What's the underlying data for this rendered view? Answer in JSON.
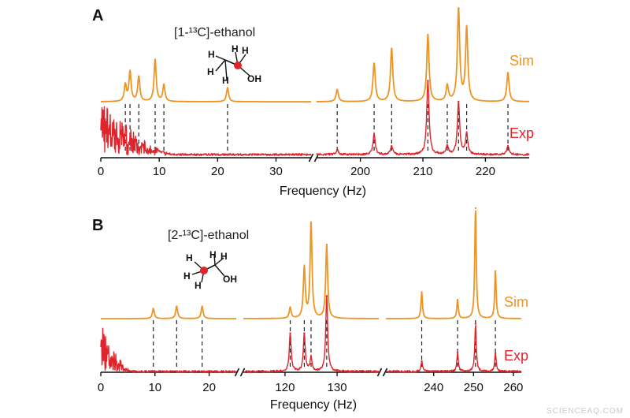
{
  "colors": {
    "sim": "#ee9422",
    "exp": "#e0242b",
    "axis": "#111111",
    "atom_highlight": "#e0242b"
  },
  "watermark": "SCIENCEAQ.COM",
  "chart_data": [
    {
      "type": "line",
      "panel": "A",
      "title": "[1-¹³C]-ethanol",
      "xlabel": "Frequency (Hz)",
      "ylabel": "",
      "x_segments": [
        {
          "xlim": [
            0,
            36
          ],
          "ticks": [
            0,
            10,
            20,
            30
          ]
        },
        {
          "xlim": [
            193,
            227
          ],
          "ticks": [
            200,
            210,
            220
          ]
        }
      ],
      "series": [
        {
          "name": "Sim",
          "peaks": [
            {
              "x": 4.2,
              "h": 0.18
            },
            {
              "x": 5.0,
              "h": 0.32
            },
            {
              "x": 6.5,
              "h": 0.27
            },
            {
              "x": 9.3,
              "h": 0.45
            },
            {
              "x": 10.8,
              "h": 0.18
            },
            {
              "x": 21.7,
              "h": 0.15
            },
            {
              "x": 196.3,
              "h": 0.13
            },
            {
              "x": 202.2,
              "h": 0.41
            },
            {
              "x": 205.0,
              "h": 0.57
            },
            {
              "x": 210.8,
              "h": 0.72
            },
            {
              "x": 213.9,
              "h": 0.17
            },
            {
              "x": 215.7,
              "h": 1.0
            },
            {
              "x": 217.0,
              "h": 0.79
            },
            {
              "x": 223.6,
              "h": 0.31
            }
          ]
        },
        {
          "name": "Exp",
          "peaks": [
            {
              "x": 196.3,
              "h": 0.05
            },
            {
              "x": 202.2,
              "h": 0.21
            },
            {
              "x": 205.0,
              "h": 0.09
            },
            {
              "x": 210.8,
              "h": 0.78
            },
            {
              "x": 213.9,
              "h": 0.09
            },
            {
              "x": 215.7,
              "h": 0.56
            },
            {
              "x": 217.0,
              "h": 0.22
            },
            {
              "x": 223.6,
              "h": 0.09
            }
          ]
        }
      ],
      "dashed_markers": [
        4.2,
        5.0,
        6.5,
        9.3,
        10.8,
        21.7,
        196.3,
        202.2,
        205.0,
        210.8,
        213.9,
        215.7,
        217.0,
        223.6
      ]
    },
    {
      "type": "line",
      "panel": "B",
      "title": "[2-¹³C]-ethanol",
      "xlabel": "Frequency (Hz)",
      "ylabel": "",
      "x_segments": [
        {
          "xlim": [
            0,
            25
          ],
          "ticks": [
            0,
            10,
            20
          ]
        },
        {
          "xlim": [
            112,
            138
          ],
          "ticks": [
            120,
            130
          ]
        },
        {
          "xlim": [
            228,
            262
          ],
          "ticks": [
            240,
            250,
            260
          ]
        }
      ],
      "series": [
        {
          "name": "Sim",
          "peaks": [
            {
              "x": 9.7,
              "h": 0.09
            },
            {
              "x": 14.0,
              "h": 0.11
            },
            {
              "x": 18.7,
              "h": 0.11
            },
            {
              "x": 121.0,
              "h": 0.1
            },
            {
              "x": 123.7,
              "h": 0.46
            },
            {
              "x": 125.0,
              "h": 0.86
            },
            {
              "x": 128.0,
              "h": 0.67
            },
            {
              "x": 237.0,
              "h": 0.24
            },
            {
              "x": 246.0,
              "h": 0.17
            },
            {
              "x": 250.5,
              "h": 1.0
            },
            {
              "x": 255.5,
              "h": 0.43
            }
          ]
        },
        {
          "name": "Exp",
          "peaks": [
            {
              "x": 121.0,
              "h": 0.44
            },
            {
              "x": 123.7,
              "h": 0.44
            },
            {
              "x": 125.0,
              "h": 0.16
            },
            {
              "x": 128.0,
              "h": 0.87
            },
            {
              "x": 237.0,
              "h": 0.12
            },
            {
              "x": 246.0,
              "h": 0.22
            },
            {
              "x": 250.5,
              "h": 0.55
            },
            {
              "x": 255.5,
              "h": 0.21
            }
          ]
        }
      ],
      "dashed_markers": [
        9.7,
        14.0,
        18.7,
        121.0,
        123.7,
        125.0,
        128.0,
        237.0,
        246.0,
        250.5,
        255.5
      ]
    }
  ]
}
